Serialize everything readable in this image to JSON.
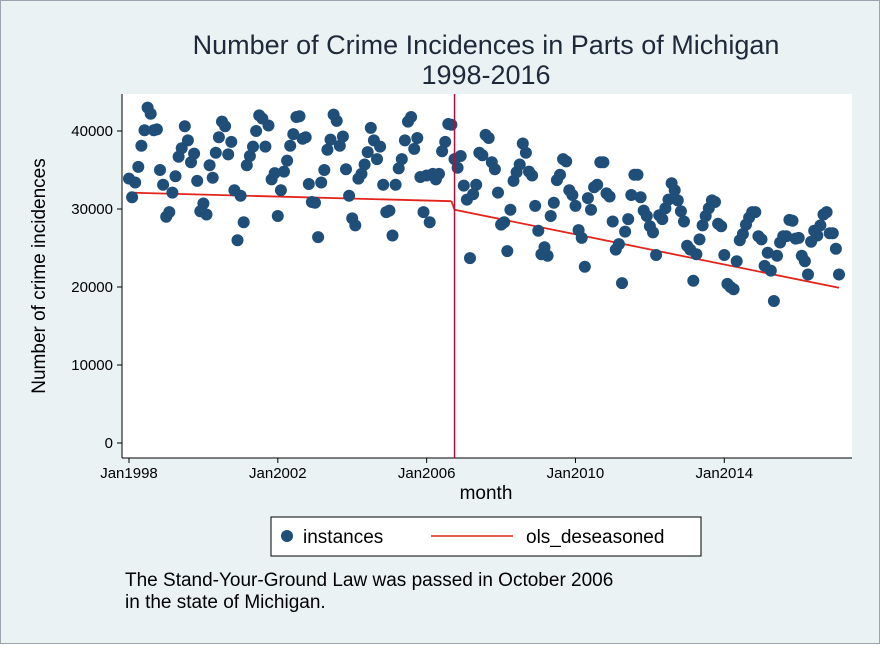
{
  "chart_data": {
    "type": "scatter",
    "title": "Number of Crime Incidences in Parts of Michigan",
    "subtitle": "1998-2016",
    "xlabel": "month",
    "ylabel": "Number of crime incidences",
    "x_ticks": [
      "Jan1998",
      "Jan2002",
      "Jan2006",
      "Jan2010",
      "Jan2014"
    ],
    "y_ticks": [
      "0",
      "10000",
      "20000",
      "30000",
      "40000"
    ],
    "y_tick_values": [
      0,
      10000,
      20000,
      30000,
      40000
    ],
    "xlim": [
      "1998-01",
      "2017-04"
    ],
    "ylim": [
      -2000,
      44500
    ],
    "grid": false,
    "legend_position": "bottom",
    "event_line": {
      "x": "2006-10",
      "color": "#b0103a"
    },
    "series": [
      {
        "name": "instances",
        "marker": "circle",
        "color": "#1f4e79",
        "points": [
          [
            "1998-01",
            33900
          ],
          [
            "1998-02",
            31500
          ],
          [
            "1998-03",
            33400
          ],
          [
            "1998-04",
            35400
          ],
          [
            "1998-05",
            38100
          ],
          [
            "1998-06",
            40100
          ],
          [
            "1998-07",
            43000
          ],
          [
            "1998-08",
            42200
          ],
          [
            "1998-09",
            40100
          ],
          [
            "1998-10",
            40200
          ],
          [
            "1998-11",
            35000
          ],
          [
            "1998-12",
            33100
          ],
          [
            "1999-01",
            29000
          ],
          [
            "1999-02",
            29600
          ],
          [
            "1999-03",
            32100
          ],
          [
            "1999-04",
            34200
          ],
          [
            "1999-05",
            36700
          ],
          [
            "1999-06",
            37800
          ],
          [
            "1999-07",
            40600
          ],
          [
            "1999-08",
            38800
          ],
          [
            "1999-09",
            36000
          ],
          [
            "1999-10",
            37100
          ],
          [
            "1999-11",
            33600
          ],
          [
            "1999-12",
            29700
          ],
          [
            "2000-01",
            30700
          ],
          [
            "2000-02",
            29300
          ],
          [
            "2000-03",
            35600
          ],
          [
            "2000-04",
            34000
          ],
          [
            "2000-05",
            37200
          ],
          [
            "2000-06",
            39200
          ],
          [
            "2000-07",
            41200
          ],
          [
            "2000-08",
            40600
          ],
          [
            "2000-09",
            37000
          ],
          [
            "2000-10",
            38600
          ],
          [
            "2000-11",
            32400
          ],
          [
            "2000-12",
            26000
          ],
          [
            "2001-01",
            31700
          ],
          [
            "2001-02",
            28300
          ],
          [
            "2001-03",
            35600
          ],
          [
            "2001-04",
            36800
          ],
          [
            "2001-05",
            38000
          ],
          [
            "2001-06",
            40000
          ],
          [
            "2001-07",
            42000
          ],
          [
            "2001-08",
            41600
          ],
          [
            "2001-09",
            38000
          ],
          [
            "2001-10",
            40700
          ],
          [
            "2001-11",
            33800
          ],
          [
            "2001-12",
            34600
          ],
          [
            "2002-01",
            29100
          ],
          [
            "2002-02",
            32400
          ],
          [
            "2002-03",
            34800
          ],
          [
            "2002-04",
            36200
          ],
          [
            "2002-05",
            38100
          ],
          [
            "2002-06",
            39600
          ],
          [
            "2002-07",
            41800
          ],
          [
            "2002-08",
            41900
          ],
          [
            "2002-09",
            39000
          ],
          [
            "2002-10",
            39200
          ],
          [
            "2002-11",
            33200
          ],
          [
            "2002-12",
            30900
          ],
          [
            "2003-01",
            30800
          ],
          [
            "2003-02",
            26400
          ],
          [
            "2003-03",
            33400
          ],
          [
            "2003-04",
            35000
          ],
          [
            "2003-05",
            37600
          ],
          [
            "2003-06",
            38900
          ],
          [
            "2003-07",
            42100
          ],
          [
            "2003-08",
            41300
          ],
          [
            "2003-09",
            38100
          ],
          [
            "2003-10",
            39300
          ],
          [
            "2003-11",
            35100
          ],
          [
            "2003-12",
            31700
          ],
          [
            "2004-01",
            28800
          ],
          [
            "2004-02",
            27900
          ],
          [
            "2004-03",
            33900
          ],
          [
            "2004-04",
            34500
          ],
          [
            "2004-05",
            35700
          ],
          [
            "2004-06",
            37300
          ],
          [
            "2004-07",
            40400
          ],
          [
            "2004-08",
            38800
          ],
          [
            "2004-09",
            36400
          ],
          [
            "2004-10",
            38000
          ],
          [
            "2004-11",
            33100
          ],
          [
            "2004-12",
            29600
          ],
          [
            "2005-01",
            29800
          ],
          [
            "2005-02",
            26600
          ],
          [
            "2005-03",
            33100
          ],
          [
            "2005-04",
            35200
          ],
          [
            "2005-05",
            36400
          ],
          [
            "2005-06",
            38800
          ],
          [
            "2005-07",
            41200
          ],
          [
            "2005-08",
            41800
          ],
          [
            "2005-09",
            37700
          ],
          [
            "2005-10",
            39100
          ],
          [
            "2005-11",
            34100
          ],
          [
            "2005-12",
            29600
          ],
          [
            "2006-01",
            34300
          ],
          [
            "2006-02",
            28300
          ],
          [
            "2006-03",
            34500
          ],
          [
            "2006-04",
            33800
          ],
          [
            "2006-05",
            34500
          ],
          [
            "2006-06",
            37400
          ],
          [
            "2006-07",
            38600
          ],
          [
            "2006-08",
            40900
          ],
          [
            "2006-09",
            40800
          ],
          [
            "2006-10",
            36400
          ],
          [
            "2006-11",
            35300
          ],
          [
            "2006-12",
            36800
          ],
          [
            "2007-01",
            33000
          ],
          [
            "2007-02",
            31200
          ],
          [
            "2007-03",
            23700
          ],
          [
            "2007-04",
            31900
          ],
          [
            "2007-05",
            33100
          ],
          [
            "2007-06",
            37200
          ],
          [
            "2007-07",
            36900
          ],
          [
            "2007-08",
            39500
          ],
          [
            "2007-09",
            39100
          ],
          [
            "2007-10",
            36000
          ],
          [
            "2007-11",
            35100
          ],
          [
            "2007-12",
            32100
          ],
          [
            "2008-01",
            28000
          ],
          [
            "2008-02",
            28300
          ],
          [
            "2008-03",
            24600
          ],
          [
            "2008-04",
            29900
          ],
          [
            "2008-05",
            33600
          ],
          [
            "2008-06",
            34700
          ],
          [
            "2008-07",
            35700
          ],
          [
            "2008-08",
            38400
          ],
          [
            "2008-09",
            37200
          ],
          [
            "2008-10",
            34800
          ],
          [
            "2008-11",
            34300
          ],
          [
            "2008-12",
            30400
          ],
          [
            "2009-01",
            27200
          ],
          [
            "2009-02",
            24200
          ],
          [
            "2009-03",
            25100
          ],
          [
            "2009-04",
            24000
          ],
          [
            "2009-05",
            29100
          ],
          [
            "2009-06",
            30800
          ],
          [
            "2009-07",
            33700
          ],
          [
            "2009-08",
            34400
          ],
          [
            "2009-09",
            36400
          ],
          [
            "2009-10",
            36100
          ],
          [
            "2009-11",
            32400
          ],
          [
            "2009-12",
            31800
          ],
          [
            "2010-01",
            30400
          ],
          [
            "2010-02",
            27300
          ],
          [
            "2010-03",
            26300
          ],
          [
            "2010-04",
            22600
          ],
          [
            "2010-05",
            31400
          ],
          [
            "2010-06",
            29900
          ],
          [
            "2010-07",
            32800
          ],
          [
            "2010-08",
            33100
          ],
          [
            "2010-09",
            36000
          ],
          [
            "2010-10",
            36000
          ],
          [
            "2010-11",
            32000
          ],
          [
            "2010-12",
            31600
          ],
          [
            "2011-01",
            28400
          ],
          [
            "2011-02",
            24800
          ],
          [
            "2011-03",
            25500
          ],
          [
            "2011-04",
            20500
          ],
          [
            "2011-05",
            27100
          ],
          [
            "2011-06",
            28700
          ],
          [
            "2011-07",
            31800
          ],
          [
            "2011-08",
            34400
          ],
          [
            "2011-09",
            34400
          ],
          [
            "2011-10",
            31500
          ],
          [
            "2011-11",
            29800
          ],
          [
            "2011-12",
            29100
          ],
          [
            "2012-01",
            27800
          ],
          [
            "2012-02",
            27000
          ],
          [
            "2012-03",
            24100
          ],
          [
            "2012-04",
            29200
          ],
          [
            "2012-05",
            28700
          ],
          [
            "2012-06",
            30100
          ],
          [
            "2012-07",
            31200
          ],
          [
            "2012-08",
            33300
          ],
          [
            "2012-09",
            32400
          ],
          [
            "2012-10",
            31100
          ],
          [
            "2012-11",
            29700
          ],
          [
            "2012-12",
            28400
          ],
          [
            "2013-01",
            25300
          ],
          [
            "2013-02",
            24800
          ],
          [
            "2013-03",
            20800
          ],
          [
            "2013-04",
            24200
          ],
          [
            "2013-05",
            26100
          ],
          [
            "2013-06",
            27900
          ],
          [
            "2013-07",
            29100
          ],
          [
            "2013-08",
            30100
          ],
          [
            "2013-09",
            31100
          ],
          [
            "2013-10",
            30900
          ],
          [
            "2013-11",
            28100
          ],
          [
            "2013-12",
            27800
          ],
          [
            "2014-01",
            24100
          ],
          [
            "2014-02",
            20400
          ],
          [
            "2014-03",
            20000
          ],
          [
            "2014-04",
            19700
          ],
          [
            "2014-05",
            23300
          ],
          [
            "2014-06",
            26000
          ],
          [
            "2014-07",
            26800
          ],
          [
            "2014-08",
            28000
          ],
          [
            "2014-09",
            28900
          ],
          [
            "2014-10",
            29600
          ],
          [
            "2014-11",
            29600
          ],
          [
            "2014-12",
            26500
          ],
          [
            "2015-01",
            26100
          ],
          [
            "2015-02",
            22700
          ],
          [
            "2015-03",
            24400
          ],
          [
            "2015-04",
            22100
          ],
          [
            "2015-05",
            18200
          ],
          [
            "2015-06",
            24000
          ],
          [
            "2015-07",
            25700
          ],
          [
            "2015-08",
            26500
          ],
          [
            "2015-09",
            26500
          ],
          [
            "2015-10",
            28600
          ],
          [
            "2015-11",
            28500
          ],
          [
            "2015-12",
            26200
          ],
          [
            "2016-01",
            26300
          ],
          [
            "2016-02",
            24000
          ],
          [
            "2016-03",
            23300
          ],
          [
            "2016-04",
            21600
          ],
          [
            "2016-05",
            25800
          ],
          [
            "2016-06",
            27200
          ],
          [
            "2016-07",
            26600
          ],
          [
            "2016-08",
            27900
          ],
          [
            "2016-09",
            29300
          ],
          [
            "2016-10",
            29600
          ],
          [
            "2016-11",
            26900
          ],
          [
            "2016-12",
            26900
          ],
          [
            "2017-01",
            24900
          ],
          [
            "2017-02",
            21600
          ]
        ]
      },
      {
        "name": "ols_deseasoned",
        "marker": "line",
        "color": "#e3241b",
        "segments": [
          [
            [
              "1998-01",
              32100
            ],
            [
              "2006-09",
              31000
            ]
          ],
          [
            [
              "2006-09",
              31000
            ],
            [
              "2006-10",
              29900
            ]
          ],
          [
            [
              "2006-10",
              29900
            ],
            [
              "2017-02",
              19900
            ]
          ]
        ]
      }
    ]
  },
  "note_lines": [
    "The Stand-Your-Ground Law was passed in October 2006",
    "in the state of Michigan."
  ]
}
